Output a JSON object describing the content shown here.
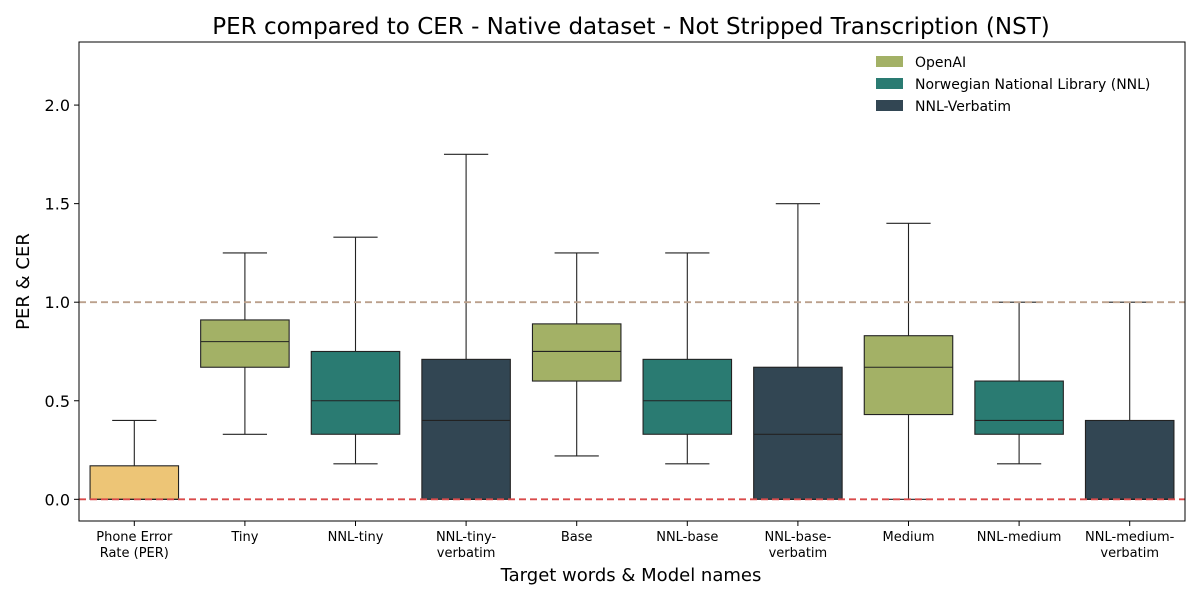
{
  "chart_data": {
    "type": "box",
    "title": "PER compared to CER  - Native dataset - Not Stripped Transcription (NST)",
    "xlabel": "Target words  &  Model names",
    "ylabel": "PER & CER",
    "ylim": [
      -0.11,
      2.32
    ],
    "yticks": [
      "0.0",
      "0.5",
      "1.0",
      "1.5",
      "2.0"
    ],
    "ytick_values": [
      0,
      0.5,
      1.0,
      1.5,
      2.0
    ],
    "reference_lines": [
      {
        "y": 0.0,
        "color": "#d94a4a",
        "style": "dashed"
      },
      {
        "y": 1.0,
        "color": "#bba08c",
        "style": "dashed"
      }
    ],
    "legend": {
      "position": "top-right",
      "entries": [
        {
          "name": "OpenAI",
          "color": "#a3b166"
        },
        {
          "name": "Norwegian National Library (NNL)",
          "color": "#2a7b72"
        },
        {
          "name": "NNL-Verbatim",
          "color": "#324653"
        }
      ]
    },
    "boxes": [
      {
        "label": [
          "Phone Error",
          "Rate (PER)"
        ],
        "color": "#edc576",
        "whisker_low": 0.0,
        "q1": 0.0,
        "median": 0.0,
        "q3": 0.17,
        "whisker_high": 0.4
      },
      {
        "label": [
          "Tiny"
        ],
        "color": "#a3b166",
        "whisker_low": 0.33,
        "q1": 0.67,
        "median": 0.8,
        "q3": 0.91,
        "whisker_high": 1.25
      },
      {
        "label": [
          "NNL-tiny"
        ],
        "color": "#2a7b72",
        "whisker_low": 0.18,
        "q1": 0.33,
        "median": 0.5,
        "q3": 0.75,
        "whisker_high": 1.33
      },
      {
        "label": [
          "NNL-tiny-",
          "verbatim"
        ],
        "color": "#324653",
        "whisker_low": 0.0,
        "q1": 0.0,
        "median": 0.4,
        "q3": 0.71,
        "whisker_high": 1.75
      },
      {
        "label": [
          "Base"
        ],
        "color": "#a3b166",
        "whisker_low": 0.22,
        "q1": 0.6,
        "median": 0.75,
        "q3": 0.89,
        "whisker_high": 1.25
      },
      {
        "label": [
          "NNL-base"
        ],
        "color": "#2a7b72",
        "whisker_low": 0.18,
        "q1": 0.33,
        "median": 0.5,
        "q3": 0.71,
        "whisker_high": 1.25
      },
      {
        "label": [
          "NNL-base-",
          "verbatim"
        ],
        "color": "#324653",
        "whisker_low": 0.0,
        "q1": 0.0,
        "median": 0.33,
        "q3": 0.67,
        "whisker_high": 1.5
      },
      {
        "label": [
          "Medium"
        ],
        "color": "#a3b166",
        "whisker_low": 0.0,
        "q1": 0.43,
        "median": 0.67,
        "q3": 0.83,
        "whisker_high": 1.4
      },
      {
        "label": [
          "NNL-medium"
        ],
        "color": "#2a7b72",
        "whisker_low": 0.18,
        "q1": 0.33,
        "median": 0.4,
        "q3": 0.6,
        "whisker_high": 1.0
      },
      {
        "label": [
          "NNL-medium-",
          "verbatim"
        ],
        "color": "#324653",
        "whisker_low": 0.0,
        "q1": 0.0,
        "median": 0.0,
        "q3": 0.4,
        "whisker_high": 1.0
      }
    ]
  }
}
